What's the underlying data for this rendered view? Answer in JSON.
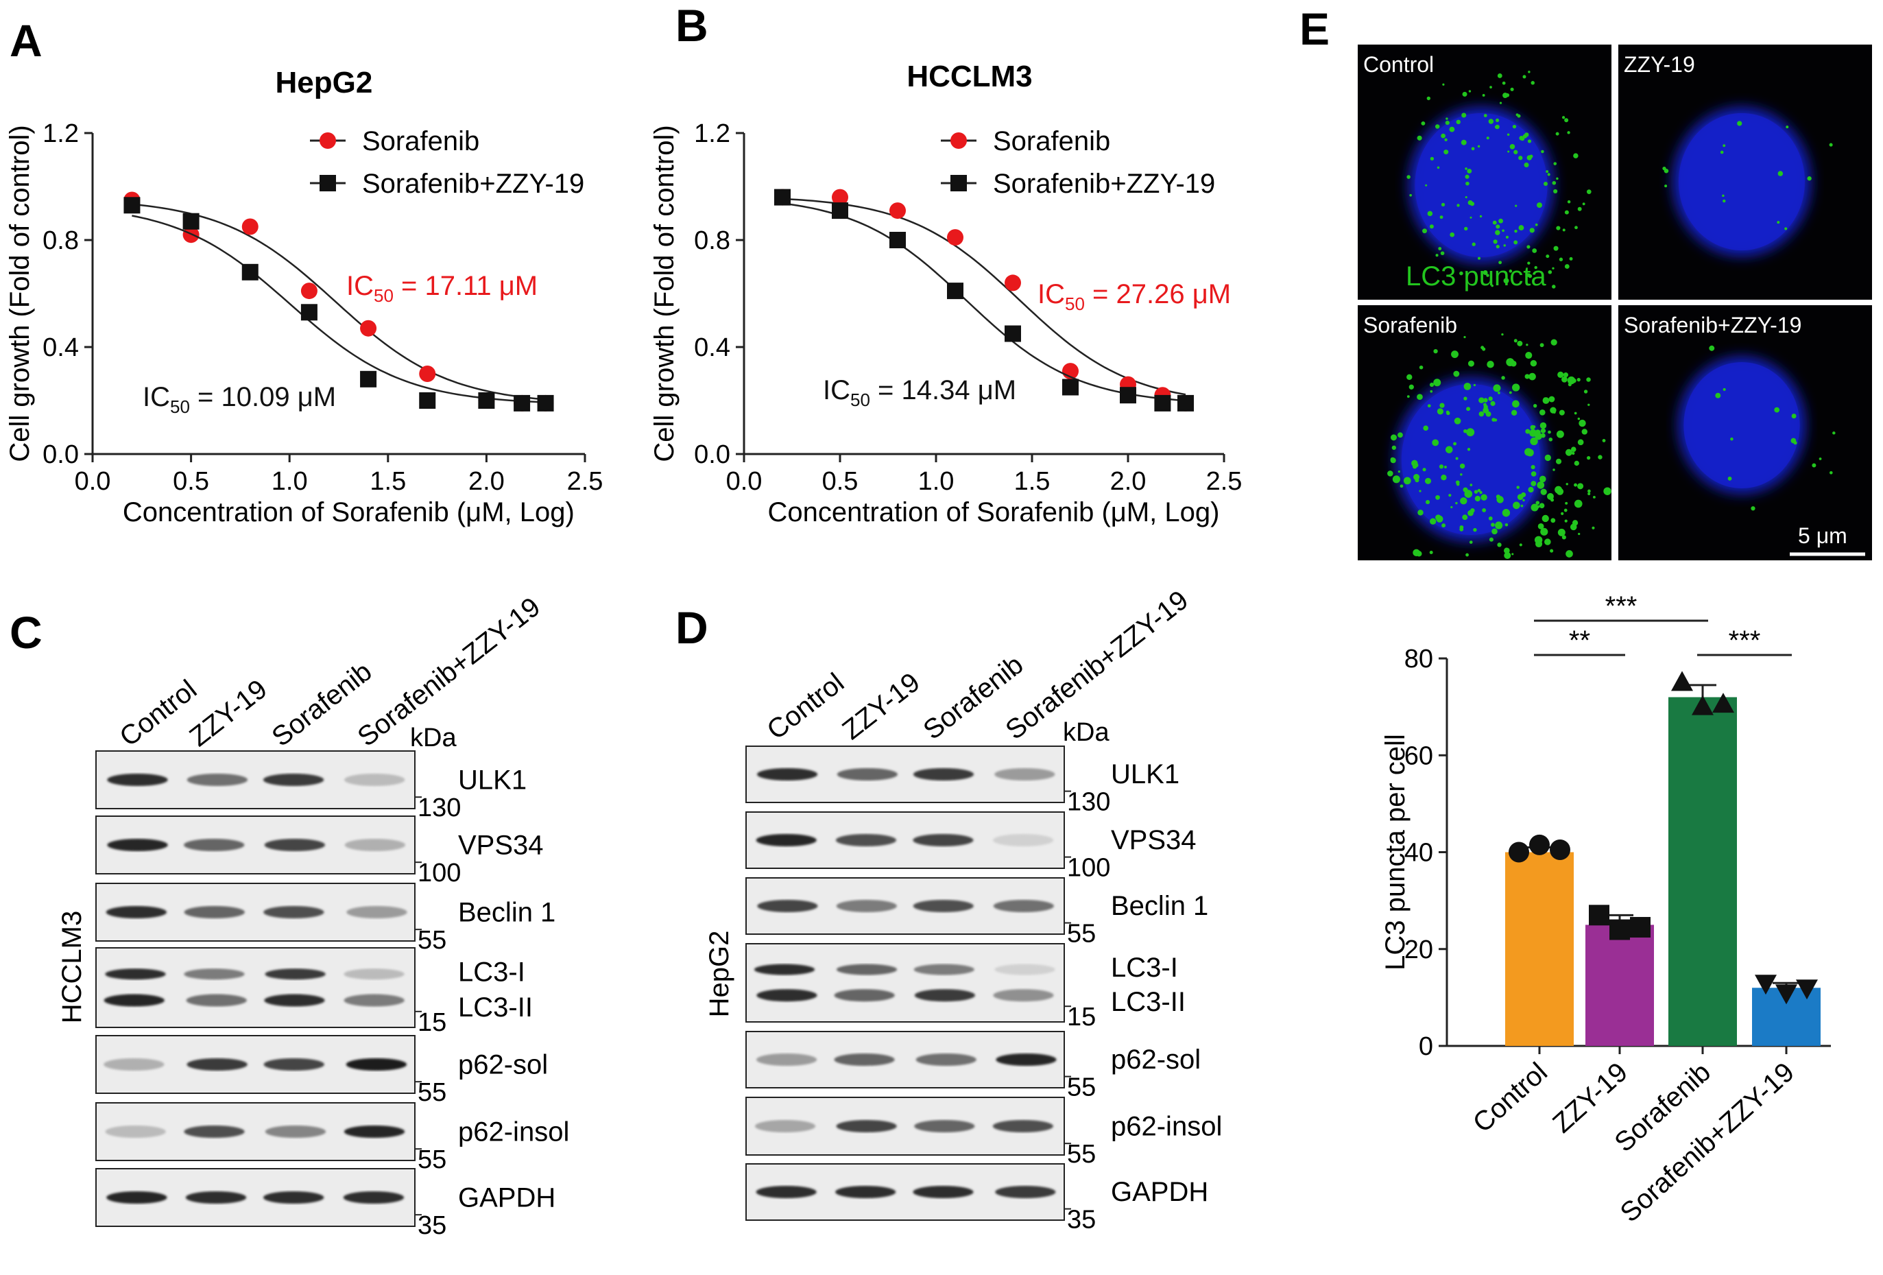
{
  "panels": {
    "A": "A",
    "B": "B",
    "C": "C",
    "D": "D",
    "E": "E"
  },
  "chart_data": [
    {
      "type": "line",
      "title": "HepG2",
      "xlabel": "Concentration of Sorafenib (μM, Log)",
      "ylabel": "Cell growth (Fold of control)",
      "xlim": [
        0.0,
        2.5
      ],
      "ylim": [
        0.0,
        1.2
      ],
      "xticks": [
        "0.0",
        "0.5",
        "1.0",
        "1.5",
        "2.0",
        "2.5"
      ],
      "yticks": [
        "0.0",
        "0.4",
        "0.8",
        "1.2"
      ],
      "legend": "top-right",
      "series": [
        {
          "name": "Sorafenib",
          "color": "#e8191c",
          "marker": "circle",
          "x": [
            0.2,
            0.5,
            0.8,
            1.1,
            1.4,
            1.7,
            2.0,
            2.18,
            2.3
          ],
          "y": [
            0.95,
            0.82,
            0.85,
            0.61,
            0.47,
            0.3,
            0.2,
            0.19,
            0.19
          ],
          "ic50": {
            "label": "IC",
            "sub": "50",
            "value": " = 17.11 μM",
            "log": 1.233
          }
        },
        {
          "name": "Sorafenib+ZZY-19",
          "color": "#111111",
          "marker": "square",
          "x": [
            0.2,
            0.5,
            0.8,
            1.1,
            1.4,
            1.7,
            2.0,
            2.18,
            2.3
          ],
          "y": [
            0.93,
            0.87,
            0.68,
            0.53,
            0.28,
            0.2,
            0.2,
            0.19,
            0.19
          ],
          "ic50": {
            "label": "IC",
            "sub": "50",
            "value": " = 10.09 μM",
            "log": 1.004
          }
        }
      ]
    },
    {
      "type": "line",
      "title": "HCCLM3",
      "xlabel": "Concentration of Sorafenib (μM, Log)",
      "ylabel": "Cell growth (Fold of control)",
      "xlim": [
        0.0,
        2.5
      ],
      "ylim": [
        0.0,
        1.2
      ],
      "xticks": [
        "0.0",
        "0.5",
        "1.0",
        "1.5",
        "2.0",
        "2.5"
      ],
      "yticks": [
        "0.0",
        "0.4",
        "0.8",
        "1.2"
      ],
      "legend": "top-right",
      "series": [
        {
          "name": "Sorafenib",
          "color": "#e8191c",
          "marker": "circle",
          "x": [
            0.2,
            0.5,
            0.8,
            1.1,
            1.4,
            1.7,
            2.0,
            2.18,
            2.3
          ],
          "y": [
            0.96,
            0.96,
            0.91,
            0.81,
            0.64,
            0.31,
            0.26,
            0.22,
            0.19
          ],
          "ic50": {
            "label": "IC",
            "sub": "50",
            "value": " = 27.26 μM",
            "log": 1.436
          }
        },
        {
          "name": "Sorafenib+ZZY-19",
          "color": "#111111",
          "marker": "square",
          "x": [
            0.2,
            0.5,
            0.8,
            1.1,
            1.4,
            1.7,
            2.0,
            2.18,
            2.3
          ],
          "y": [
            0.96,
            0.91,
            0.8,
            0.61,
            0.45,
            0.25,
            0.22,
            0.19,
            0.19
          ],
          "ic50": {
            "label": "IC",
            "sub": "50",
            "value": " = 14.34 μM",
            "log": 1.157
          }
        }
      ]
    },
    {
      "type": "bar",
      "title": "",
      "xlabel": "",
      "ylabel": "LC3 puncta per cell",
      "ylim": [
        0,
        80
      ],
      "yticks": [
        "0",
        "20",
        "40",
        "60",
        "80"
      ],
      "categories": [
        "Control",
        "ZZY-19",
        "Sorafenib",
        "Sorafenib+ZZY-19"
      ],
      "values": [
        40,
        25,
        72,
        12
      ],
      "errors": [
        1,
        2,
        2.5,
        1
      ],
      "colors": [
        "#f39a1f",
        "#9a2f95",
        "#197a42",
        "#1b7bc6"
      ],
      "markers": [
        "circle",
        "square",
        "triangle-up",
        "triangle-down"
      ],
      "points": [
        [
          40,
          41.5,
          40.5
        ],
        [
          27,
          24,
          24.5
        ],
        [
          75,
          70,
          70.5
        ],
        [
          13,
          11,
          12
        ]
      ],
      "significance": [
        {
          "from": 0,
          "to": 1,
          "label": "**"
        },
        {
          "from": 0,
          "to": 2,
          "label": "***"
        },
        {
          "from": 2,
          "to": 3,
          "label": "***"
        }
      ]
    }
  ],
  "blots": {
    "lanes": [
      "Control",
      "ZZY-19",
      "Sorafenib",
      "Sorafenib+ZZY-19"
    ],
    "kda": "kDa",
    "C": {
      "cell_line": "HCCLM3",
      "rows": [
        {
          "mw": "130",
          "protein": "ULK1",
          "bands": [
            0.85,
            0.55,
            0.8,
            0.2
          ]
        },
        {
          "mw": "100",
          "protein": "VPS34",
          "bands": [
            0.9,
            0.6,
            0.75,
            0.25
          ]
        },
        {
          "mw": "55",
          "protein": "Beclin 1",
          "bands": [
            0.85,
            0.6,
            0.7,
            0.35
          ]
        },
        {
          "mw": "15",
          "protein": "LC3-I",
          "protein2": "LC3-II",
          "bands": [
            0.85,
            0.5,
            0.8,
            0.2
          ],
          "bands2": [
            0.9,
            0.55,
            0.85,
            0.5
          ]
        },
        {
          "mw": "55",
          "protein": "p62-sol",
          "bands": [
            0.25,
            0.8,
            0.75,
            0.95
          ]
        },
        {
          "mw": "55",
          "protein": "p62-insol",
          "bands": [
            0.2,
            0.7,
            0.45,
            0.9
          ]
        },
        {
          "mw": "35",
          "protein": "GAPDH",
          "bands": [
            0.9,
            0.85,
            0.85,
            0.85
          ]
        }
      ]
    },
    "D": {
      "cell_line": "HepG2",
      "rows": [
        {
          "mw": "130",
          "protein": "ULK1",
          "bands": [
            0.85,
            0.6,
            0.8,
            0.35
          ]
        },
        {
          "mw": "100",
          "protein": "VPS34",
          "bands": [
            0.9,
            0.7,
            0.75,
            0.1
          ]
        },
        {
          "mw": "55",
          "protein": "Beclin 1",
          "bands": [
            0.75,
            0.5,
            0.7,
            0.55
          ]
        },
        {
          "mw": "15",
          "protein": "LC3-I",
          "protein2": "LC3-II",
          "bands": [
            0.85,
            0.6,
            0.5,
            0.1
          ],
          "bands2": [
            0.85,
            0.6,
            0.8,
            0.4
          ]
        },
        {
          "mw": "55",
          "protein": "p62-sol",
          "bands": [
            0.35,
            0.6,
            0.55,
            0.9
          ]
        },
        {
          "mw": "55",
          "protein": "p62-insol",
          "bands": [
            0.3,
            0.75,
            0.6,
            0.7
          ]
        },
        {
          "mw": "35",
          "protein": "GAPDH",
          "bands": [
            0.85,
            0.85,
            0.85,
            0.8
          ]
        }
      ]
    }
  },
  "micrographs": {
    "panels": [
      {
        "label": "Control",
        "puncta": "medium",
        "nucleus_color": "#1420c8"
      },
      {
        "label": "ZZY-19",
        "puncta": "low",
        "nucleus_color": "#1420c8"
      },
      {
        "label": "Sorafenib",
        "puncta": "high",
        "nucleus_color": "#1420c8"
      },
      {
        "label": "Sorafenib+ZZY-19",
        "puncta": "low",
        "nucleus_color": "#1420c8"
      }
    ],
    "annotation": "LC3 puncta",
    "annotation_color": "#22c51e",
    "scale_bar": "5 μm"
  }
}
